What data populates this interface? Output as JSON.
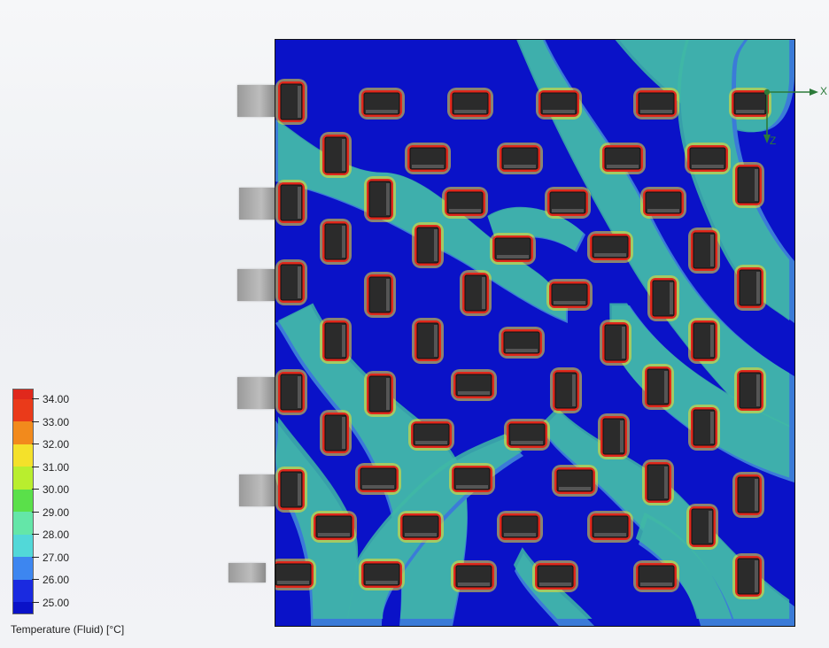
{
  "axes": {
    "x_label": "X",
    "z_label": "Z"
  },
  "legend": {
    "title": "Temperature (Fluid) [°C]",
    "ticks": [
      "34.00",
      "33.00",
      "32.00",
      "31.00",
      "30.00",
      "29.00",
      "28.00",
      "27.00",
      "26.00",
      "25.00"
    ],
    "colors": [
      "#e0281c",
      "#f05018",
      "#f28a1c",
      "#f4e12a",
      "#b9ee2e",
      "#5ae04a",
      "#64e6a8",
      "#52d8d8",
      "#3d86f0",
      "#0a12c8"
    ]
  },
  "colors": {
    "background": "#0a12c8",
    "plume": "#3fb9a4",
    "plume_dark": "#3b7bd8",
    "hot": "#e0281c",
    "warm": "#f4e12a",
    "component": "#2b2b2b",
    "tab": "#a4a4a4"
  }
}
